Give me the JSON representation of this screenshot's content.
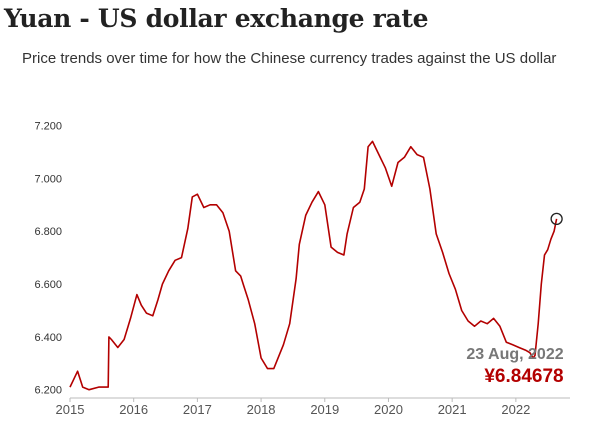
{
  "title": "Yuan - US dollar exchange rate",
  "subtitle": "Price trends over time for how the Chinese currency trades against the US dollar",
  "chart_data": {
    "type": "line",
    "title": "Yuan - US dollar exchange rate",
    "subtitle": "Price trends over time for how the Chinese currency trades against the US dollar",
    "xlabel": "",
    "ylabel": "",
    "xlim": [
      2015.0,
      2022.85
    ],
    "ylim": [
      6.18,
      7.24
    ],
    "x_ticks": [
      2015,
      2016,
      2017,
      2018,
      2019,
      2020,
      2021,
      2022
    ],
    "x_tick_labels": [
      "2015",
      "2016",
      "2017",
      "2018",
      "2019",
      "2020",
      "2021",
      "2022"
    ],
    "y_ticks": [
      6.2,
      6.4,
      6.6,
      6.8,
      7.0,
      7.2
    ],
    "y_tick_labels": [
      "6.200",
      "6.400",
      "6.600",
      "6.800",
      "7.000",
      "7.200"
    ],
    "grid": false,
    "line_color": "#b30000",
    "series": [
      {
        "x": [
          2015.0,
          2015.06,
          2015.12,
          2015.2,
          2015.3,
          2015.45,
          2015.6,
          2015.61,
          2015.65,
          2015.75,
          2015.85,
          2015.95,
          2016.05,
          2016.12,
          2016.2,
          2016.3,
          2016.38,
          2016.45,
          2016.55,
          2016.65,
          2016.75,
          2016.85,
          2016.92,
          2017.0,
          2017.1,
          2017.2,
          2017.3,
          2017.4,
          2017.5,
          2017.6,
          2017.68,
          2017.72,
          2017.8,
          2017.9,
          2018.0,
          2018.1,
          2018.2,
          2018.3,
          2018.35,
          2018.45,
          2018.55,
          2018.6,
          2018.7,
          2018.8,
          2018.9,
          2019.0,
          2019.1,
          2019.2,
          2019.3,
          2019.35,
          2019.45,
          2019.55,
          2019.62,
          2019.68,
          2019.75,
          2019.85,
          2019.95,
          2020.05,
          2020.15,
          2020.25,
          2020.35,
          2020.45,
          2020.55,
          2020.65,
          2020.75,
          2020.85,
          2020.95,
          2021.05,
          2021.15,
          2021.25,
          2021.35,
          2021.45,
          2021.55,
          2021.65,
          2021.75,
          2021.85,
          2021.95,
          2022.05,
          2022.15,
          2022.22,
          2022.27,
          2022.3,
          2022.35,
          2022.4,
          2022.45,
          2022.5,
          2022.55,
          2022.6,
          2022.64
        ],
        "y": [
          6.21,
          6.24,
          6.27,
          6.21,
          6.2,
          6.21,
          6.21,
          6.4,
          6.39,
          6.36,
          6.39,
          6.47,
          6.56,
          6.52,
          6.49,
          6.48,
          6.54,
          6.6,
          6.65,
          6.69,
          6.7,
          6.81,
          6.93,
          6.94,
          6.89,
          6.9,
          6.9,
          6.87,
          6.8,
          6.65,
          6.63,
          6.6,
          6.54,
          6.45,
          6.32,
          6.28,
          6.28,
          6.34,
          6.37,
          6.45,
          6.62,
          6.75,
          6.86,
          6.91,
          6.95,
          6.9,
          6.74,
          6.72,
          6.71,
          6.79,
          6.89,
          6.91,
          6.96,
          7.12,
          7.14,
          7.09,
          7.04,
          6.97,
          7.06,
          7.08,
          7.12,
          7.09,
          7.08,
          6.96,
          6.79,
          6.72,
          6.64,
          6.58,
          6.5,
          6.46,
          6.44,
          6.46,
          6.45,
          6.47,
          6.44,
          6.38,
          6.37,
          6.36,
          6.35,
          6.34,
          6.32,
          6.33,
          6.45,
          6.6,
          6.71,
          6.73,
          6.77,
          6.8,
          6.84678
        ]
      }
    ],
    "annotation": {
      "date": "23 Aug, 2022",
      "value": "¥6.84678",
      "x": 2022.64,
      "y": 6.84678
    }
  }
}
